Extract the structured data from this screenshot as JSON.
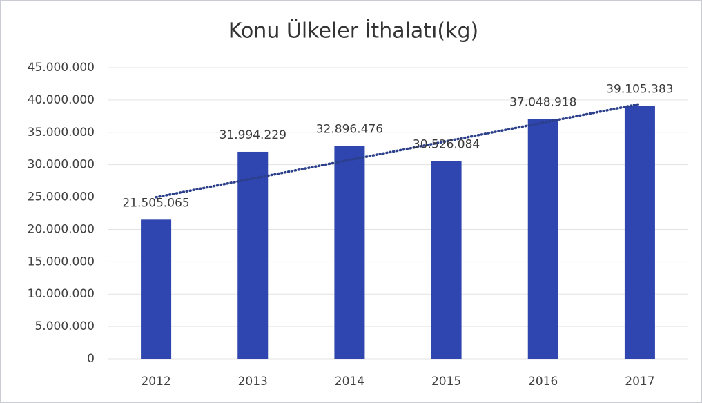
{
  "chart_data": {
    "type": "bar",
    "title": "Konu Ülkeler İthalatı(kg)",
    "categories": [
      "2012",
      "2013",
      "2014",
      "2015",
      "2016",
      "2017"
    ],
    "values": [
      21505065,
      31994229,
      32896476,
      30526084,
      37048918,
      39105383
    ],
    "value_labels": [
      "21.505.065",
      "31.994.229",
      "32.896.476",
      "30.526.084",
      "37.048.918",
      "39.105.383"
    ],
    "color": "#2f45b0",
    "ylim": [
      0,
      45000000
    ],
    "yticks": [
      0,
      {
        "value": 5000000,
        "label": "5.000.000"
      },
      {
        "value": 10000000,
        "label": "10.000.000"
      },
      {
        "value": 15000000,
        "label": "15.000.000"
      },
      {
        "value": 20000000,
        "label": "20.000.000"
      },
      {
        "value": 25000000,
        "label": "25.000.000"
      },
      {
        "value": 30000000,
        "label": "30.000.000"
      },
      {
        "value": 35000000,
        "label": "35.000.000"
      },
      {
        "value": 40000000,
        "label": "40.000.000"
      },
      {
        "value": 45000000,
        "label": "45.000.000"
      }
    ],
    "grid": true,
    "trendline": {
      "type": "linear",
      "color": "#2b3f8a"
    }
  }
}
